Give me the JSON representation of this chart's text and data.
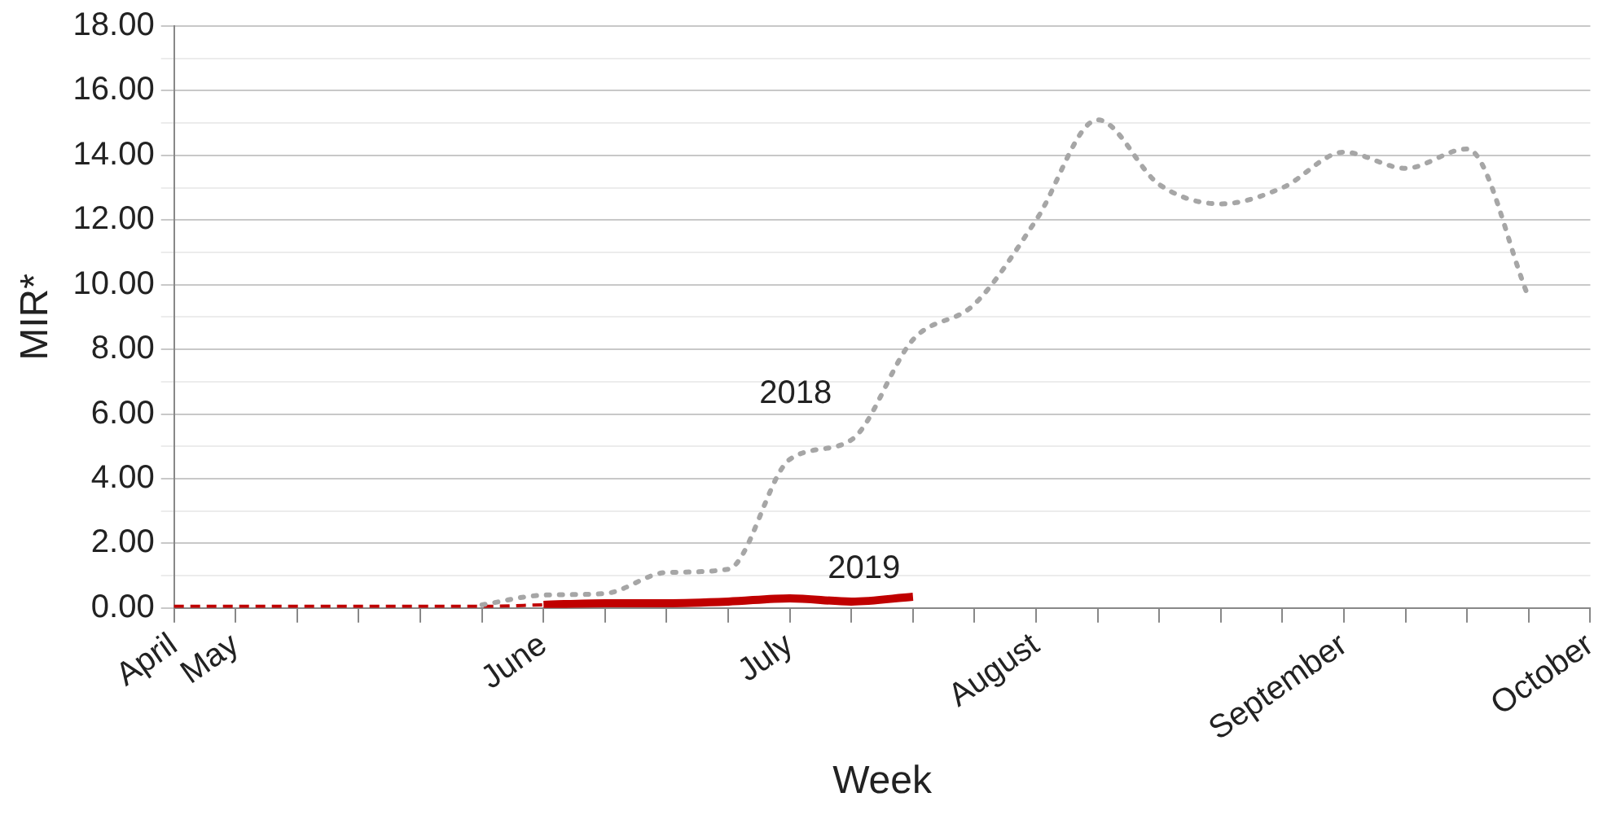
{
  "chart_data": {
    "type": "line",
    "xlabel": "Week",
    "ylabel": "MIR*",
    "categories": [
      "April",
      "May",
      null,
      null,
      null,
      null,
      "June",
      null,
      null,
      null,
      "July",
      null,
      null,
      null,
      "August",
      null,
      null,
      null,
      null,
      "September",
      null,
      null,
      null,
      "October"
    ],
    "series": [
      {
        "name": "2018",
        "color": "#a6a6a6",
        "line_style": "dotted",
        "values": [
          null,
          null,
          null,
          null,
          null,
          0.1,
          0.4,
          0.45,
          1.1,
          1.2,
          4.6,
          5.2,
          8.3,
          9.4,
          12.0,
          15.1,
          13.1,
          12.5,
          13.0,
          14.1,
          13.6,
          14.2,
          9.6,
          null
        ]
      },
      {
        "color": "#c00000",
        "line_style": "dashed",
        "values": [
          0.05,
          0.05,
          0.05,
          0.05,
          0.05,
          0.05,
          0.1,
          null,
          null,
          null,
          null,
          null,
          null,
          null,
          null,
          null,
          null,
          null,
          null,
          null,
          null,
          null,
          null,
          null
        ]
      },
      {
        "name": "2019",
        "color": "#c00000",
        "line_style": "solid",
        "values": [
          null,
          null,
          null,
          null,
          null,
          null,
          0.1,
          0.15,
          0.15,
          0.2,
          0.3,
          0.2,
          0.35,
          null,
          null,
          null,
          null,
          null,
          null,
          null,
          null,
          null,
          null,
          null
        ]
      }
    ],
    "ylim": [
      0,
      18
    ],
    "yticks": [
      {
        "value": 0,
        "label": "0.00"
      },
      {
        "value": 1,
        "label": null
      },
      {
        "value": 2,
        "label": "2.00"
      },
      {
        "value": 3,
        "label": null
      },
      {
        "value": 4,
        "label": "4.00"
      },
      {
        "value": 5,
        "label": null
      },
      {
        "value": 6,
        "label": "6.00"
      },
      {
        "value": 7,
        "label": null
      },
      {
        "value": 8,
        "label": "8.00"
      },
      {
        "value": 9,
        "label": null
      },
      {
        "value": 10,
        "label": "10.00"
      },
      {
        "value": 11,
        "label": null
      },
      {
        "value": 12,
        "label": "12.00"
      },
      {
        "value": 13,
        "label": null
      },
      {
        "value": 14,
        "label": "14.00"
      },
      {
        "value": 15,
        "label": null
      },
      {
        "value": 16,
        "label": "16.00"
      },
      {
        "value": 17,
        "label": null
      },
      {
        "value": 18,
        "label": "18.00"
      }
    ],
    "grid": "y",
    "legend": false,
    "marker": "none"
  }
}
